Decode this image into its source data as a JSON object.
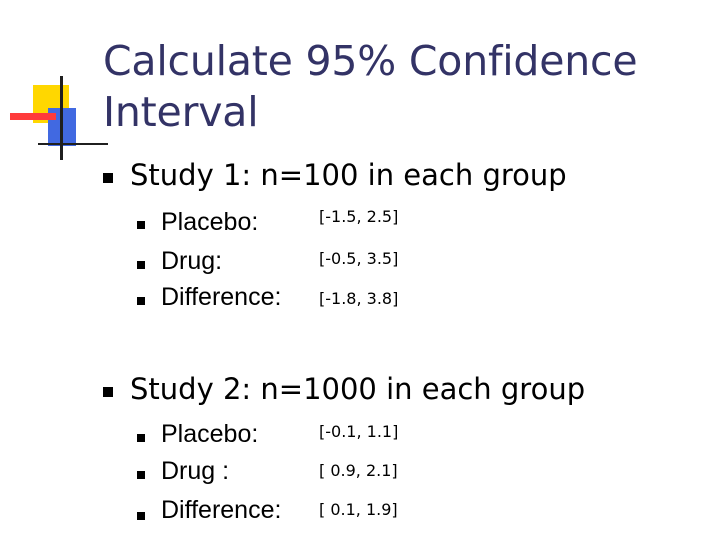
{
  "slide": {
    "title_line1": "Calculate 95% Confidence",
    "title_line2": "Interval"
  },
  "studies": [
    {
      "heading": "Study 1: n=100 in each group",
      "rows": [
        {
          "label": "Placebo:",
          "interval": "[-1.5, 2.5]"
        },
        {
          "label": "Drug:",
          "interval": "[-0.5, 3.5]"
        },
        {
          "label": "Difference:",
          "interval": "[-1.8, 3.8]"
        }
      ]
    },
    {
      "heading": "Study 2: n=1000 in each group",
      "rows": [
        {
          "label": "Placebo:",
          "interval": "[-0.1, 1.1]"
        },
        {
          "label": "Drug :",
          "interval": "[ 0.9, 2.1]"
        },
        {
          "label": "Difference:",
          "interval": "[ 0.1, 1.9]"
        }
      ]
    }
  ],
  "colors": {
    "title": "#333366",
    "text": "#000000",
    "logo_yellow": "#ffd700",
    "logo_blue": "#4169e1",
    "logo_red": "#ff3b3b"
  }
}
